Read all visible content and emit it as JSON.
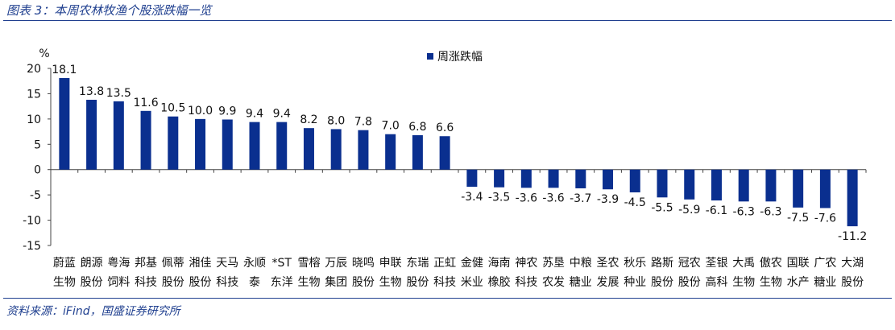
{
  "header": {
    "caption": "图表 3：本周农林牧渔个股涨跌幅一览"
  },
  "footer": {
    "source": "资料来源：iFind，国盛证券研究所"
  },
  "colors": {
    "bar": "#0a2f8f",
    "rule": "#1f3f8f"
  },
  "chart_data": {
    "type": "bar",
    "unit_label": "%",
    "legend": [
      "周涨跌幅"
    ],
    "legend_position": "top-right",
    "ylim": [
      -15,
      20
    ],
    "yticks": [
      -15,
      -10,
      -5,
      0,
      5,
      10,
      15,
      20
    ],
    "grid": false,
    "categories": [
      [
        "蔚蓝",
        "生物"
      ],
      [
        "朗源",
        "股份"
      ],
      [
        "粤海",
        "饲料"
      ],
      [
        "邦基",
        "科技"
      ],
      [
        "佩蒂",
        "股份"
      ],
      [
        "湘佳",
        "股份"
      ],
      [
        "天马",
        "科技"
      ],
      [
        "永顺",
        "泰"
      ],
      [
        "*ST",
        "东洋"
      ],
      [
        "雪榕",
        "生物"
      ],
      [
        "万辰",
        "集团"
      ],
      [
        "晓鸣",
        "股份"
      ],
      [
        "申联",
        "生物"
      ],
      [
        "东瑞",
        "股份"
      ],
      [
        "正虹",
        "科技"
      ],
      [
        "金健",
        "米业"
      ],
      [
        "海南",
        "橡胶"
      ],
      [
        "神农",
        "科技"
      ],
      [
        "苏垦",
        "农发"
      ],
      [
        "中粮",
        "糖业"
      ],
      [
        "圣农",
        "发展"
      ],
      [
        "秋乐",
        "种业"
      ],
      [
        "路斯",
        "股份"
      ],
      [
        "冠农",
        "股份"
      ],
      [
        "荃银",
        "高科"
      ],
      [
        "大禹",
        "生物"
      ],
      [
        "傲农",
        "生物"
      ],
      [
        "国联",
        "水产"
      ],
      [
        "广农",
        "糖业"
      ],
      [
        "大湖",
        "股份"
      ]
    ],
    "series": [
      {
        "name": "周涨跌幅",
        "values": [
          18.1,
          13.8,
          13.5,
          11.6,
          10.5,
          10.0,
          9.9,
          9.4,
          9.4,
          8.2,
          8.0,
          7.8,
          7.0,
          6.8,
          6.6,
          -3.4,
          -3.5,
          -3.6,
          -3.6,
          -3.7,
          -3.9,
          -4.5,
          -5.5,
          -5.9,
          -6.1,
          -6.3,
          -6.3,
          -7.5,
          -7.6,
          -11.2
        ],
        "labels": [
          "18.1",
          "13.8",
          "13.5",
          "11.6",
          "10.5",
          "10.0",
          "9.9",
          "9.4",
          "9.4",
          "8.2",
          "8.0",
          "7.8",
          "7.0",
          "6.8",
          "6.6",
          "-3.4",
          "-3.5",
          "-3.6",
          "-3.6",
          "-3.7",
          "-3.9",
          "-4.5",
          "-5.5",
          "-5.9",
          "-6.1",
          "-6.3",
          "-6.3",
          "-7.5",
          "-7.6",
          "-11.2"
        ]
      }
    ]
  }
}
